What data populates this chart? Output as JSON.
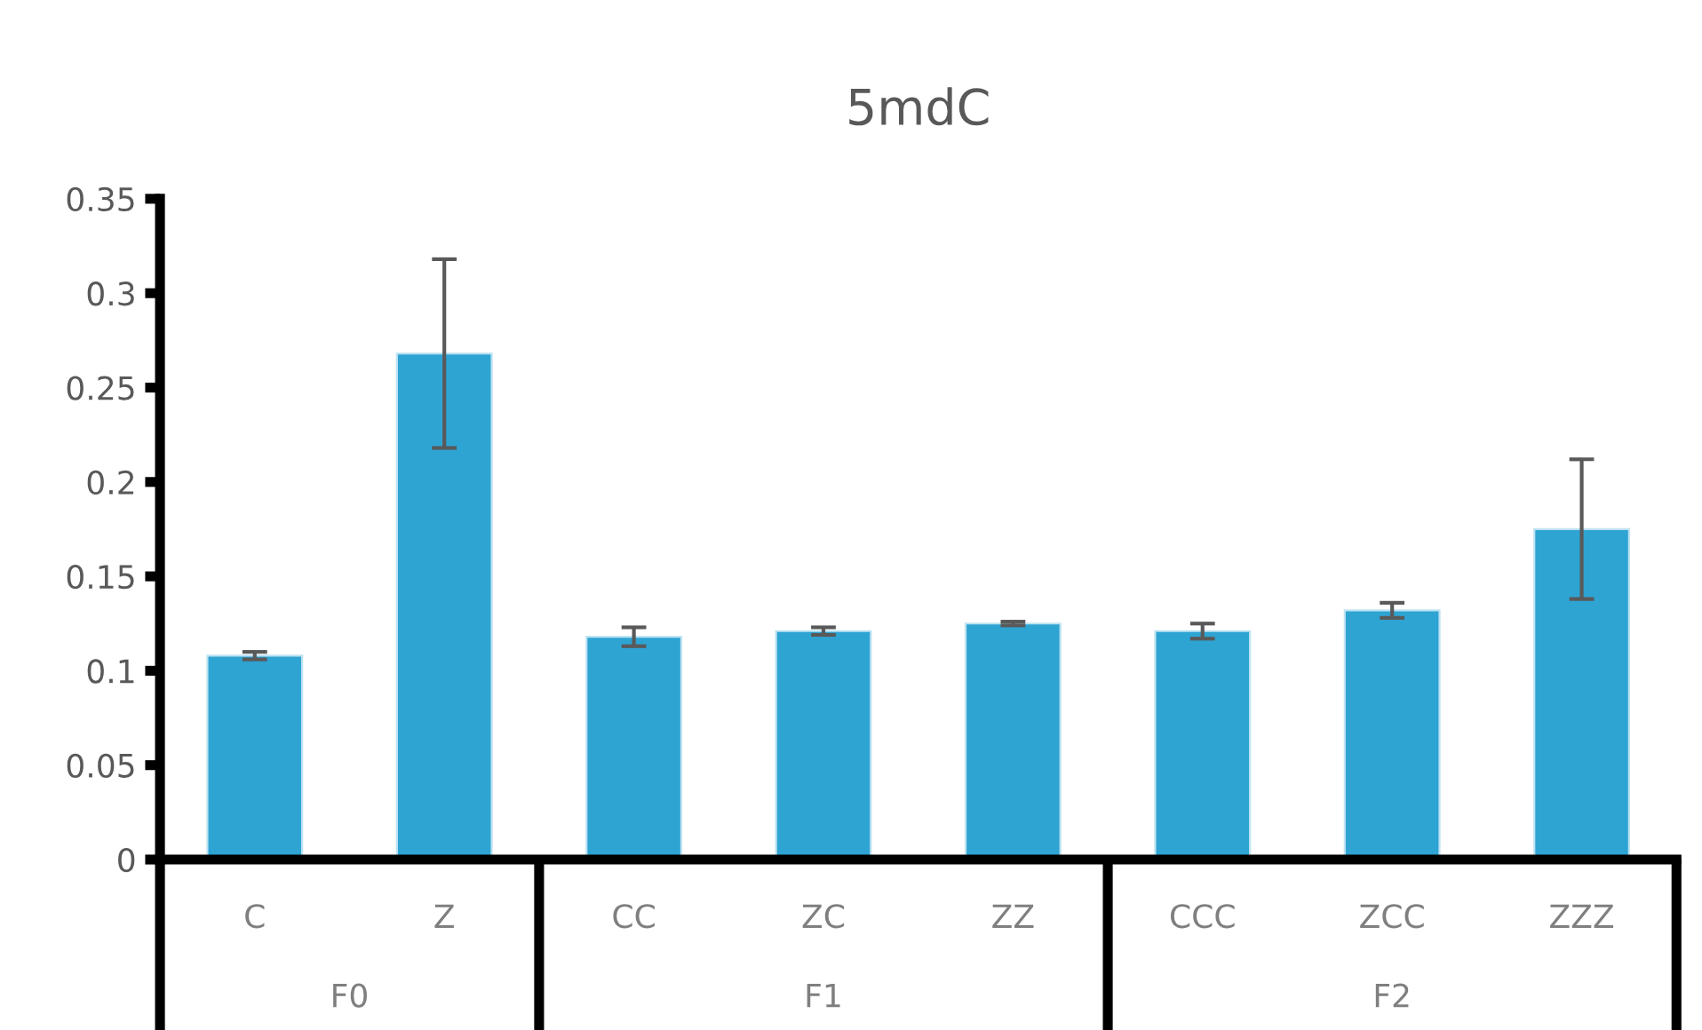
{
  "chart_data": {
    "type": "bar",
    "title": "5mdC",
    "categories": [
      "C",
      "Z",
      "CC",
      "ZC",
      "ZZ",
      "CCC",
      "ZCC",
      "ZZZ"
    ],
    "values": [
      0.108,
      0.268,
      0.118,
      0.121,
      0.125,
      0.121,
      0.132,
      0.175
    ],
    "errors": [
      0.002,
      0.05,
      0.005,
      0.002,
      0.001,
      0.004,
      0.004,
      0.037
    ],
    "color": "#2ea4d3",
    "ylim": [
      0,
      0.35
    ],
    "yticks": [
      0,
      0.05,
      0.1,
      0.15,
      0.2,
      0.25,
      0.3,
      0.35
    ],
    "annotations": [
      "F0",
      "F1",
      "F2"
    ]
  }
}
